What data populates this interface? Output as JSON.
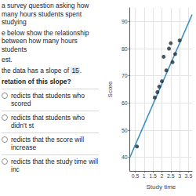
{
  "document": {
    "intro": [
      "a survey question asking how many hours students spent studying",
      "e below show the relationship between how many hours students",
      "est."
    ],
    "slope_sentence": [
      "the data has a slope of ",
      "15",
      "."
    ],
    "question": "retation of this slope?",
    "options": [
      "redicts that students who scored",
      "redicts that students who didn't st",
      "redicts that the score will increase",
      "redicts that the study time will inc"
    ]
  },
  "chart_data": {
    "type": "scatter",
    "x": [
      0.6,
      1.6,
      1.75,
      1.85,
      2.0,
      2.1,
      2.25,
      2.4,
      2.5,
      2.6,
      2.75,
      3.0
    ],
    "values": [
      44,
      62,
      64,
      66,
      68,
      77,
      72,
      80,
      82,
      75,
      78,
      83
    ],
    "color": "#1f2d3d",
    "xlabel": "Study time",
    "ylabel": "Score",
    "xlim": [
      0.2,
      3.7
    ],
    "ylim": [
      35,
      95
    ],
    "xticks": [
      0.5,
      1,
      1.5,
      2,
      2.5,
      3,
      3.5
    ],
    "yticks": [
      40,
      50,
      60,
      70,
      80,
      90
    ],
    "grid": true,
    "trend_line": {
      "x": [
        0.2,
        3.7
      ],
      "values": [
        40,
        92.5
      ],
      "color": "#3a8fc1"
    }
  }
}
